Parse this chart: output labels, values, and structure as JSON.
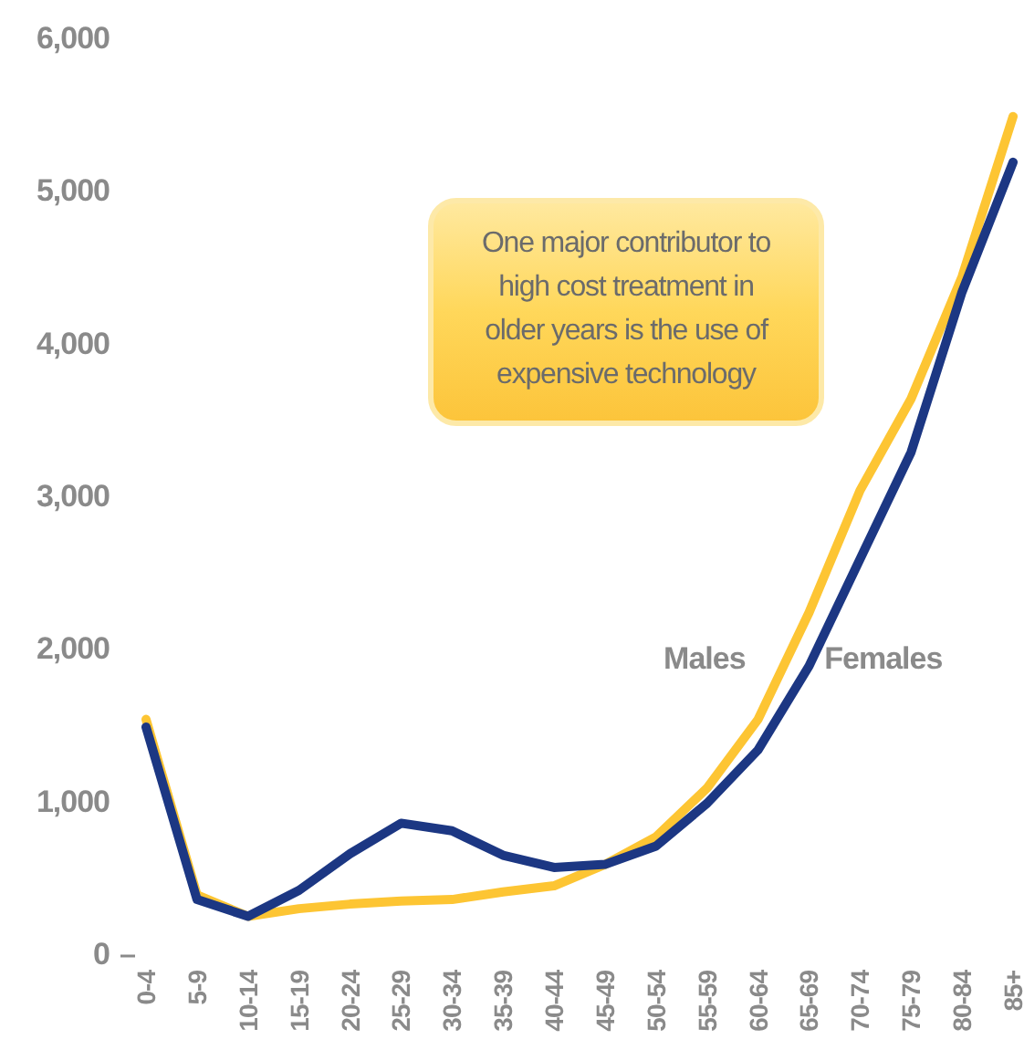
{
  "chart_data": {
    "type": "line",
    "categories": [
      "0-4",
      "5-9",
      "10-14",
      "15-19",
      "20-24",
      "25-29",
      "30-34",
      "35-39",
      "40-44",
      "45-49",
      "50-54",
      "55-59",
      "60-64",
      "65-69",
      "70-74",
      "75-79",
      "80-84",
      "85+"
    ],
    "series": [
      {
        "name": "Males",
        "color": "#fdc533",
        "values": [
          1550,
          400,
          260,
          310,
          340,
          360,
          370,
          420,
          460,
          600,
          780,
          1100,
          1550,
          2250,
          3050,
          3650,
          4450,
          5500
        ]
      },
      {
        "name": "Females",
        "color": "#1c3783",
        "values": [
          1500,
          370,
          260,
          430,
          670,
          870,
          820,
          660,
          580,
          600,
          720,
          1000,
          1350,
          1900,
          2600,
          3300,
          4350,
          5200
        ]
      }
    ],
    "ylim": [
      0,
      6000
    ],
    "yticks": [
      {
        "value": 0,
        "label": "0"
      },
      {
        "value": 1000,
        "label": "1,000"
      },
      {
        "value": 2000,
        "label": "2,000"
      },
      {
        "value": 3000,
        "label": "3,000"
      },
      {
        "value": 4000,
        "label": "4,000"
      },
      {
        "value": 5000,
        "label": "5,000"
      },
      {
        "value": 6000,
        "label": "6,000"
      }
    ],
    "grid": false,
    "legend": false,
    "marker": "none",
    "line_style": "solid",
    "annotations": [
      "One major contributor to high cost treatment in older years is the use of expensive technology"
    ]
  }
}
